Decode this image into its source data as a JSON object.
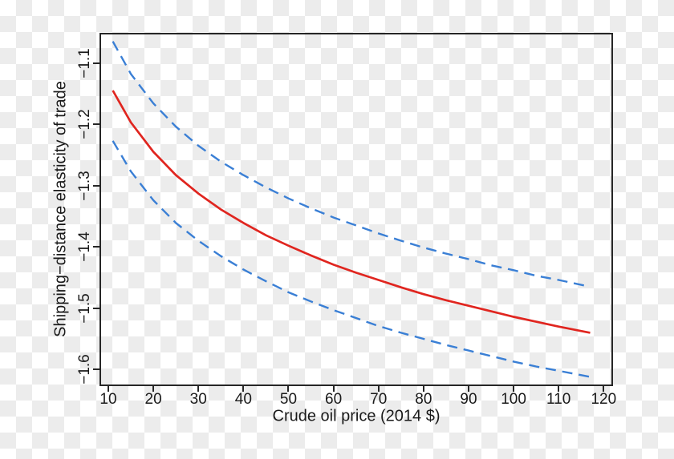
{
  "figure": {
    "background": "transparent-checkerboard",
    "title": ""
  },
  "colors": {
    "frame": "#262626",
    "text": "#1a1a1a",
    "central_line": "#e0251f",
    "band_line": "#3a7fd5",
    "checker_dark": "#ececec",
    "checker_light": "#ffffff"
  },
  "chart_data": {
    "type": "line",
    "title": "",
    "xlabel": "Crude oil price (2014 $)",
    "ylabel": "Shipping−distance elasticity of trade",
    "xlim": [
      8.04,
      122.08
    ],
    "ylim": [
      -1.627,
      -1.051
    ],
    "grid": false,
    "legend_position": "none",
    "x_ticks": [
      {
        "v": 10,
        "label": "10"
      },
      {
        "v": 20,
        "label": "20"
      },
      {
        "v": 30,
        "label": "30"
      },
      {
        "v": 40,
        "label": "40"
      },
      {
        "v": 50,
        "label": "50"
      },
      {
        "v": 60,
        "label": "60"
      },
      {
        "v": 70,
        "label": "70"
      },
      {
        "v": 80,
        "label": "80"
      },
      {
        "v": 90,
        "label": "90"
      },
      {
        "v": 100,
        "label": "100"
      },
      {
        "v": 110,
        "label": "110"
      },
      {
        "v": 120,
        "label": "120"
      }
    ],
    "y_ticks": [
      {
        "v": -1.1,
        "label": "−1.1"
      },
      {
        "v": -1.2,
        "label": "−1.2"
      },
      {
        "v": -1.3,
        "label": "−1.3"
      },
      {
        "v": -1.4,
        "label": "−1.4"
      },
      {
        "v": -1.5,
        "label": "−1.5"
      },
      {
        "v": -1.6,
        "label": "−1.6"
      }
    ],
    "x": [
      11,
      15,
      20,
      25,
      30,
      35,
      40,
      45,
      50,
      55,
      60,
      65,
      70,
      75,
      80,
      85,
      90,
      95,
      100,
      105,
      110,
      117
    ],
    "series": [
      {
        "name": "point-estimate",
        "style": "solid",
        "color": "#e0251f",
        "values": [
          -1.145,
          -1.197,
          -1.245,
          -1.283,
          -1.313,
          -1.339,
          -1.361,
          -1.381,
          -1.398,
          -1.414,
          -1.429,
          -1.442,
          -1.454,
          -1.466,
          -1.477,
          -1.487,
          -1.496,
          -1.505,
          -1.514,
          -1.522,
          -1.53,
          -1.54
        ]
      },
      {
        "name": "upper-confidence-bound",
        "style": "dashed",
        "color": "#3a7fd5",
        "values": [
          -1.065,
          -1.118,
          -1.166,
          -1.204,
          -1.235,
          -1.261,
          -1.283,
          -1.303,
          -1.321,
          -1.337,
          -1.352,
          -1.365,
          -1.378,
          -1.39,
          -1.401,
          -1.411,
          -1.42,
          -1.43,
          -1.438,
          -1.447,
          -1.454,
          -1.465
        ]
      },
      {
        "name": "lower-confidence-bound",
        "style": "dashed",
        "color": "#3a7fd5",
        "values": [
          -1.227,
          -1.277,
          -1.324,
          -1.361,
          -1.39,
          -1.415,
          -1.437,
          -1.456,
          -1.474,
          -1.489,
          -1.503,
          -1.516,
          -1.529,
          -1.54,
          -1.55,
          -1.56,
          -1.569,
          -1.578,
          -1.587,
          -1.595,
          -1.602,
          -1.612
        ]
      }
    ]
  }
}
